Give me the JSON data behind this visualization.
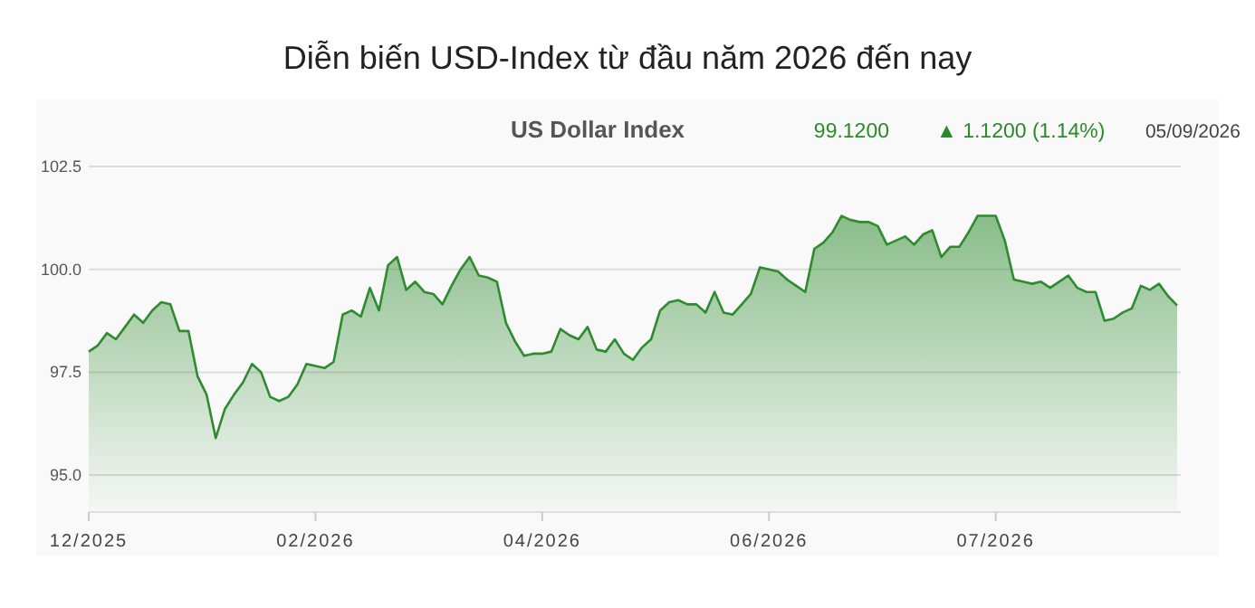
{
  "chart_data": {
    "type": "area",
    "title": "Diễn biến USD-Index từ đầu năm 2026 đến nay",
    "subtitle": "US Dollar Index",
    "annotations": [
      "99.1200",
      "▲ 1.1200 (1.14%)",
      "05/09/2026"
    ],
    "categories": [
      "12/2025",
      null,
      null,
      null,
      null,
      null,
      null,
      null,
      null,
      null,
      null,
      null,
      null,
      null,
      null,
      null,
      null,
      null,
      null,
      null,
      null,
      null,
      null,
      null,
      null,
      "02/2026",
      null,
      null,
      null,
      null,
      null,
      null,
      null,
      null,
      null,
      null,
      null,
      null,
      null,
      null,
      null,
      null,
      null,
      null,
      null,
      null,
      null,
      null,
      null,
      null,
      "04/2026",
      null,
      null,
      null,
      null,
      null,
      null,
      null,
      null,
      null,
      null,
      null,
      null,
      null,
      null,
      null,
      null,
      null,
      null,
      null,
      null,
      null,
      null,
      null,
      null,
      "06/2026",
      null,
      null,
      null,
      null,
      null,
      null,
      null,
      null,
      null,
      null,
      null,
      null,
      null,
      null,
      null,
      null,
      null,
      null,
      null,
      null,
      null,
      null,
      null,
      null,
      "07/2026",
      null,
      null,
      null,
      null,
      null,
      null,
      null,
      null,
      null,
      null,
      null,
      null,
      null,
      null,
      null,
      null,
      null,
      null,
      null,
      null
    ],
    "series": [
      {
        "color": "#2e8b2e",
        "values": [
          98.0,
          98.15,
          98.45,
          98.3,
          98.6,
          98.9,
          98.7,
          99.0,
          99.2,
          99.15,
          98.5,
          98.5,
          97.4,
          96.95,
          95.9,
          96.6,
          96.95,
          97.25,
          97.7,
          97.5,
          96.9,
          96.8,
          96.9,
          97.2,
          97.7,
          97.65,
          97.6,
          97.75,
          98.9,
          99.0,
          98.85,
          99.55,
          99.0,
          100.1,
          100.3,
          99.5,
          99.7,
          99.45,
          99.4,
          99.15,
          99.6,
          100.0,
          100.3,
          99.85,
          99.8,
          99.7,
          98.7,
          98.25,
          97.9,
          97.95,
          97.95,
          98.0,
          98.55,
          98.4,
          98.3,
          98.6,
          98.05,
          98.0,
          98.3,
          97.95,
          97.8,
          98.1,
          98.3,
          99.0,
          99.2,
          99.25,
          99.15,
          99.15,
          98.95,
          99.45,
          98.95,
          98.9,
          99.15,
          99.4,
          100.05,
          100.0,
          99.95,
          99.75,
          99.6,
          99.45,
          100.5,
          100.65,
          100.9,
          101.3,
          101.2,
          101.15,
          101.15,
          101.05,
          100.6,
          100.7,
          100.8,
          100.6,
          100.85,
          100.95,
          100.3,
          100.55,
          100.55,
          100.9,
          101.3,
          101.3,
          101.3,
          100.7,
          99.75,
          99.7,
          99.65,
          99.7,
          99.55,
          99.7,
          99.85,
          99.55,
          99.45,
          99.45,
          98.75,
          98.8,
          98.95,
          99.05,
          99.6,
          99.5,
          99.65,
          99.35,
          99.12
        ]
      }
    ],
    "ylim": [
      94.1,
      102.5
    ],
    "yticks": [
      {
        "value": 95,
        "label": "95.0"
      },
      {
        "value": 97.5,
        "label": "97.5"
      },
      {
        "value": 100,
        "label": "100.0"
      },
      {
        "value": 102.5,
        "label": "102.5"
      }
    ],
    "grid": "y"
  }
}
